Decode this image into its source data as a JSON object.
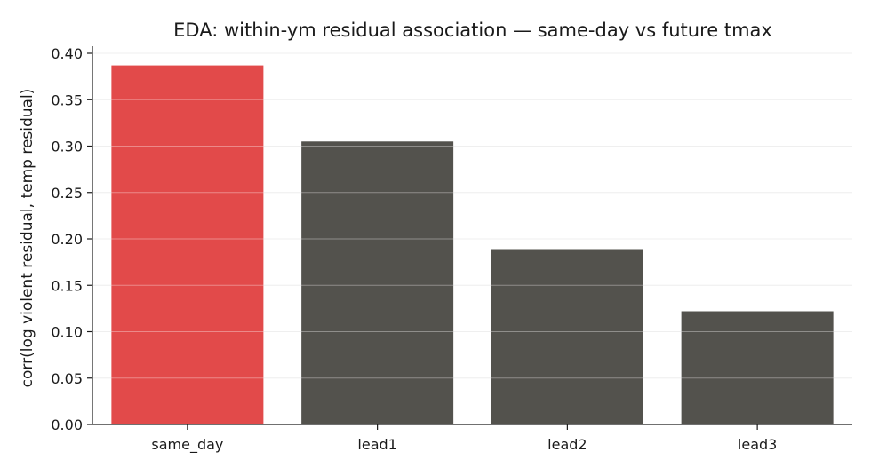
{
  "chart_data": {
    "type": "bar",
    "title": "EDA: within-ym residual association — same-day vs future tmax",
    "xlabel": "",
    "ylabel": "corr(log violent residual, temp residual)",
    "categories": [
      "same_day",
      "lead1",
      "lead2",
      "lead3"
    ],
    "values": [
      0.387,
      0.305,
      0.189,
      0.122
    ],
    "bar_colors": [
      "#e24a4a",
      "#53524d",
      "#53524d",
      "#53524d"
    ],
    "ylim": [
      0,
      0.4
    ],
    "yticks": [
      0.0,
      0.05,
      0.1,
      0.15,
      0.2,
      0.25,
      0.3,
      0.35,
      0.4
    ],
    "ytick_labels": [
      "0.00",
      "0.05",
      "0.10",
      "0.15",
      "0.20",
      "0.25",
      "0.30",
      "0.35",
      "0.40"
    ],
    "grid": "horizontal",
    "grid_color": "#e6e6e6",
    "legend": "none"
  }
}
